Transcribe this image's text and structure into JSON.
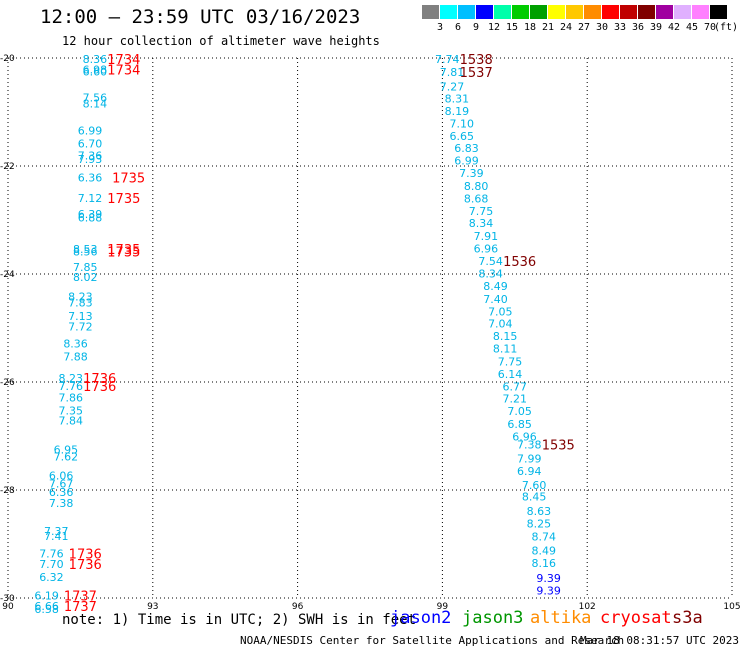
{
  "header": {
    "title": "12:00 – 23:59 UTC 03/16/2023",
    "subtitle": "12 hour collection of altimeter wave heights"
  },
  "colorbar": {
    "colors": [
      "#808080",
      "#00ffff",
      "#00bfff",
      "#0000ff",
      "#00ffaa",
      "#00cc00",
      "#00a000",
      "#ffff00",
      "#ffc800",
      "#ff8c00",
      "#ff0000",
      "#c00000",
      "#800000",
      "#a000a0",
      "#e0b0ff",
      "#ff80ff",
      "#000000"
    ],
    "labels": [
      "3",
      "6",
      "9",
      "12",
      "15",
      "18",
      "21",
      "24",
      "27",
      "30",
      "33",
      "36",
      "39",
      "42",
      "45",
      "70"
    ],
    "unit": "(ft)"
  },
  "chart_data": {
    "type": "scatter",
    "title": "12:00 – 23:59 UTC 03/16/2023",
    "xlabel": "",
    "ylabel": "",
    "xlim": [
      90,
      105
    ],
    "ylim": [
      -30,
      -20
    ],
    "x_ticks": [
      "90",
      "93",
      "96",
      "99",
      "102",
      "105"
    ],
    "y_ticks": [
      "-20",
      "-22",
      "-24",
      "-26",
      "-28",
      "-30"
    ],
    "grid": true,
    "wave_heights": [
      {
        "lon": 91.8,
        "lat": -20.02,
        "text": "8.36",
        "color": "#00b4e6"
      },
      {
        "lon": 91.8,
        "lat": -20.21,
        "text": "6.98",
        "color": "#00b4e6"
      },
      {
        "lon": 91.8,
        "lat": -20.25,
        "text": "6.60",
        "color": "#00b4e6"
      },
      {
        "lon": 91.8,
        "lat": -20.73,
        "text": "7.56",
        "color": "#00b4e6"
      },
      {
        "lon": 91.8,
        "lat": -20.84,
        "text": "8.14",
        "color": "#00b4e6"
      },
      {
        "lon": 91.7,
        "lat": -21.34,
        "text": "6.99",
        "color": "#00b4e6"
      },
      {
        "lon": 91.7,
        "lat": -21.58,
        "text": "6.70",
        "color": "#00b4e6"
      },
      {
        "lon": 91.7,
        "lat": -21.81,
        "text": "7.36",
        "color": "#00b4e6"
      },
      {
        "lon": 91.7,
        "lat": -21.87,
        "text": "7.93",
        "color": "#00b4e6"
      },
      {
        "lon": 91.7,
        "lat": -22.21,
        "text": "6.36",
        "color": "#00b4e6"
      },
      {
        "lon": 91.7,
        "lat": -22.59,
        "text": "7.12",
        "color": "#00b4e6"
      },
      {
        "lon": 91.7,
        "lat": -22.89,
        "text": "6.39",
        "color": "#00b4e6"
      },
      {
        "lon": 91.7,
        "lat": -22.95,
        "text": "6.88",
        "color": "#00b4e6"
      },
      {
        "lon": 91.6,
        "lat": -23.54,
        "text": "8.53",
        "color": "#00b4e6"
      },
      {
        "lon": 91.6,
        "lat": -23.58,
        "text": "8.56",
        "color": "#00b4e6"
      },
      {
        "lon": 91.6,
        "lat": -23.87,
        "text": "7.85",
        "color": "#00b4e6"
      },
      {
        "lon": 91.6,
        "lat": -24.06,
        "text": "8.02",
        "color": "#00b4e6"
      },
      {
        "lon": 91.5,
        "lat": -24.42,
        "text": "8.23",
        "color": "#00b4e6"
      },
      {
        "lon": 91.5,
        "lat": -24.53,
        "text": "7.83",
        "color": "#00b4e6"
      },
      {
        "lon": 91.5,
        "lat": -24.78,
        "text": "7.13",
        "color": "#00b4e6"
      },
      {
        "lon": 91.5,
        "lat": -24.97,
        "text": "7.72",
        "color": "#00b4e6"
      },
      {
        "lon": 91.4,
        "lat": -25.29,
        "text": "8.36",
        "color": "#00b4e6"
      },
      {
        "lon": 91.4,
        "lat": -25.53,
        "text": "7.88",
        "color": "#00b4e6"
      },
      {
        "lon": 91.3,
        "lat": -25.93,
        "text": "8.23",
        "color": "#00b4e6"
      },
      {
        "lon": 91.3,
        "lat": -26.07,
        "text": "7.76",
        "color": "#00b4e6"
      },
      {
        "lon": 91.3,
        "lat": -26.29,
        "text": "7.86",
        "color": "#00b4e6"
      },
      {
        "lon": 91.3,
        "lat": -26.53,
        "text": "7.35",
        "color": "#00b4e6"
      },
      {
        "lon": 91.3,
        "lat": -26.71,
        "text": "7.84",
        "color": "#00b4e6"
      },
      {
        "lon": 91.2,
        "lat": -27.25,
        "text": "6.95",
        "color": "#00b4e6"
      },
      {
        "lon": 91.2,
        "lat": -27.38,
        "text": "7.62",
        "color": "#00b4e6"
      },
      {
        "lon": 91.1,
        "lat": -27.73,
        "text": "6.06",
        "color": "#00b4e6"
      },
      {
        "lon": 91.1,
        "lat": -27.88,
        "text": "7.67",
        "color": "#00b4e6"
      },
      {
        "lon": 91.1,
        "lat": -28.04,
        "text": "6.36",
        "color": "#00b4e6"
      },
      {
        "lon": 91.1,
        "lat": -28.24,
        "text": "7.38",
        "color": "#00b4e6"
      },
      {
        "lon": 91.0,
        "lat": -28.76,
        "text": "7.37",
        "color": "#00b4e6"
      },
      {
        "lon": 91.0,
        "lat": -28.85,
        "text": "7.41",
        "color": "#00b4e6"
      },
      {
        "lon": 90.9,
        "lat": -29.18,
        "text": "7.76",
        "color": "#00b4e6"
      },
      {
        "lon": 90.9,
        "lat": -29.37,
        "text": "7.70",
        "color": "#00b4e6"
      },
      {
        "lon": 90.9,
        "lat": -29.61,
        "text": "6.32",
        "color": "#00b4e6"
      },
      {
        "lon": 90.8,
        "lat": -29.95,
        "text": "6.19",
        "color": "#00b4e6"
      },
      {
        "lon": 90.8,
        "lat": -30.15,
        "text": "6.66",
        "color": "#00b4e6"
      },
      {
        "lon": 90.8,
        "lat": -30.2,
        "text": "6.58",
        "color": "#00b4e6"
      },
      {
        "lon": 99.1,
        "lat": -20.02,
        "text": "7.74",
        "color": "#00b4e6"
      },
      {
        "lon": 99.2,
        "lat": -20.26,
        "text": "7.81",
        "color": "#00b4e6"
      },
      {
        "lon": 99.2,
        "lat": -20.53,
        "text": "7.27",
        "color": "#00b4e6"
      },
      {
        "lon": 99.3,
        "lat": -20.75,
        "text": "8.31",
        "color": "#00b4e6"
      },
      {
        "lon": 99.3,
        "lat": -20.98,
        "text": "8.19",
        "color": "#00b4e6"
      },
      {
        "lon": 99.4,
        "lat": -21.21,
        "text": "7.10",
        "color": "#00b4e6"
      },
      {
        "lon": 99.4,
        "lat": -21.44,
        "text": "6.65",
        "color": "#00b4e6"
      },
      {
        "lon": 99.5,
        "lat": -21.67,
        "text": "6.83",
        "color": "#00b4e6"
      },
      {
        "lon": 99.5,
        "lat": -21.9,
        "text": "6.99",
        "color": "#00b4e6"
      },
      {
        "lon": 99.6,
        "lat": -22.13,
        "text": "7.39",
        "color": "#00b4e6"
      },
      {
        "lon": 99.7,
        "lat": -22.37,
        "text": "8.80",
        "color": "#00b4e6"
      },
      {
        "lon": 99.7,
        "lat": -22.6,
        "text": "8.68",
        "color": "#00b4e6"
      },
      {
        "lon": 99.8,
        "lat": -22.83,
        "text": "7.75",
        "color": "#00b4e6"
      },
      {
        "lon": 99.8,
        "lat": -23.06,
        "text": "8.34",
        "color": "#00b4e6"
      },
      {
        "lon": 99.9,
        "lat": -23.3,
        "text": "7.91",
        "color": "#00b4e6"
      },
      {
        "lon": 99.9,
        "lat": -23.53,
        "text": "6.96",
        "color": "#00b4e6"
      },
      {
        "lon": 100.0,
        "lat": -23.76,
        "text": "7.54",
        "color": "#00b4e6"
      },
      {
        "lon": 100.0,
        "lat": -23.99,
        "text": "8.34",
        "color": "#00b4e6"
      },
      {
        "lon": 100.1,
        "lat": -24.22,
        "text": "8.49",
        "color": "#00b4e6"
      },
      {
        "lon": 100.1,
        "lat": -24.46,
        "text": "7.40",
        "color": "#00b4e6"
      },
      {
        "lon": 100.2,
        "lat": -24.69,
        "text": "7.05",
        "color": "#00b4e6"
      },
      {
        "lon": 100.2,
        "lat": -24.92,
        "text": "7.04",
        "color": "#00b4e6"
      },
      {
        "lon": 100.3,
        "lat": -25.15,
        "text": "8.15",
        "color": "#00b4e6"
      },
      {
        "lon": 100.3,
        "lat": -25.38,
        "text": "8.11",
        "color": "#00b4e6"
      },
      {
        "lon": 100.4,
        "lat": -25.62,
        "text": "7.75",
        "color": "#00b4e6"
      },
      {
        "lon": 100.4,
        "lat": -25.85,
        "text": "6.14",
        "color": "#00b4e6"
      },
      {
        "lon": 100.5,
        "lat": -26.08,
        "text": "6.77",
        "color": "#00b4e6"
      },
      {
        "lon": 100.5,
        "lat": -26.31,
        "text": "7.21",
        "color": "#00b4e6"
      },
      {
        "lon": 100.6,
        "lat": -26.54,
        "text": "7.05",
        "color": "#00b4e6"
      },
      {
        "lon": 100.6,
        "lat": -26.78,
        "text": "6.85",
        "color": "#00b4e6"
      },
      {
        "lon": 100.7,
        "lat": -27.01,
        "text": "6.96",
        "color": "#00b4e6"
      },
      {
        "lon": 100.8,
        "lat": -27.16,
        "text": "7.38",
        "color": "#00b4e6"
      },
      {
        "lon": 100.8,
        "lat": -27.42,
        "text": "7.99",
        "color": "#00b4e6"
      },
      {
        "lon": 100.8,
        "lat": -27.65,
        "text": "6.94",
        "color": "#00b4e6"
      },
      {
        "lon": 100.9,
        "lat": -27.91,
        "text": "7.60",
        "color": "#00b4e6"
      },
      {
        "lon": 100.9,
        "lat": -28.12,
        "text": "8.45",
        "color": "#00b4e6"
      },
      {
        "lon": 101.0,
        "lat": -28.39,
        "text": "8.63",
        "color": "#00b4e6"
      },
      {
        "lon": 101.0,
        "lat": -28.62,
        "text": "8.25",
        "color": "#00b4e6"
      },
      {
        "lon": 101.1,
        "lat": -28.86,
        "text": "8.74",
        "color": "#00b4e6"
      },
      {
        "lon": 101.1,
        "lat": -29.12,
        "text": "8.49",
        "color": "#00b4e6"
      },
      {
        "lon": 101.1,
        "lat": -29.35,
        "text": "8.16",
        "color": "#00b4e6"
      },
      {
        "lon": 101.2,
        "lat": -29.63,
        "text": "9.39",
        "color": "#0000ff"
      },
      {
        "lon": 101.2,
        "lat": -29.86,
        "text": "9.39",
        "color": "#0000ff"
      }
    ],
    "time_labels": [
      {
        "lon": 92.4,
        "lat": -20.02,
        "text": "1734",
        "color": "#ff0000"
      },
      {
        "lon": 92.4,
        "lat": -20.21,
        "text": "1734",
        "color": "#ff0000"
      },
      {
        "lon": 92.5,
        "lat": -22.21,
        "text": "1735",
        "color": "#ff0000"
      },
      {
        "lon": 92.4,
        "lat": -22.59,
        "text": "1735",
        "color": "#ff0000"
      },
      {
        "lon": 92.4,
        "lat": -23.54,
        "text": "1735",
        "color": "#ff0000"
      },
      {
        "lon": 92.4,
        "lat": -23.58,
        "text": "1735",
        "color": "#ff0000"
      },
      {
        "lon": 91.9,
        "lat": -25.93,
        "text": "1736",
        "color": "#ff0000"
      },
      {
        "lon": 91.9,
        "lat": -26.07,
        "text": "1736",
        "color": "#ff0000"
      },
      {
        "lon": 91.6,
        "lat": -29.18,
        "text": "1736",
        "color": "#ff0000"
      },
      {
        "lon": 91.6,
        "lat": -29.37,
        "text": "1736",
        "color": "#ff0000"
      },
      {
        "lon": 91.5,
        "lat": -29.95,
        "text": "1737",
        "color": "#ff0000"
      },
      {
        "lon": 91.5,
        "lat": -30.15,
        "text": "1737",
        "color": "#ff0000"
      },
      {
        "lon": 99.7,
        "lat": -20.02,
        "text": "1538",
        "color": "#800000"
      },
      {
        "lon": 99.7,
        "lat": -20.26,
        "text": "1537",
        "color": "#800000"
      },
      {
        "lon": 100.6,
        "lat": -23.76,
        "text": "1536",
        "color": "#800000"
      },
      {
        "lon": 101.4,
        "lat": -27.16,
        "text": "1535",
        "color": "#800000"
      }
    ]
  },
  "footer": {
    "note": "note: 1) Time is in UTC; 2) SWH is in feet",
    "satellites": [
      {
        "name": "jason2",
        "color": "#0000ff"
      },
      {
        "name": "jason3",
        "color": "#009600"
      },
      {
        "name": "altika",
        "color": "#ff8c00"
      },
      {
        "name": "cryosat",
        "color": "#ff0000"
      },
      {
        "name": "s3a",
        "color": "#800000"
      }
    ],
    "credit": "NOAA/NESDIS Center for Satellite Applications and Research",
    "stamp": "Mar 18 08:31:57 UTC 2023"
  }
}
